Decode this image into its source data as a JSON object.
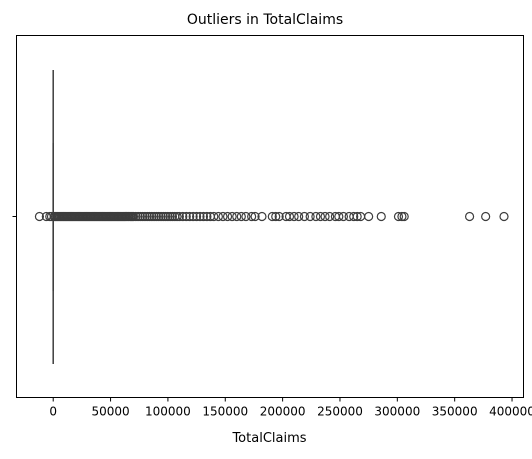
{
  "chart_data": {
    "type": "boxplot",
    "orientation": "horizontal",
    "title": "Outliers in TotalClaims",
    "xlabel": "TotalClaims",
    "ylabel": "",
    "xlim": [
      -32000,
      410000
    ],
    "xticks": [
      0,
      50000,
      100000,
      150000,
      200000,
      250000,
      300000,
      350000,
      400000
    ],
    "xtick_labels": [
      "0",
      "50000",
      "100000",
      "150000",
      "200000",
      "250000",
      "300000",
      "350000",
      "400000"
    ],
    "yticks": [
      ""
    ],
    "grid": false,
    "box": {
      "q1": 0,
      "median": 0,
      "q3": 0,
      "whisker_low": 0,
      "whisker_high": 0
    },
    "outliers": [
      -12000,
      -6000,
      -3000,
      -1500,
      1000,
      2000,
      3000,
      4000,
      5000,
      6000,
      7000,
      8000,
      9000,
      10000,
      11000,
      12000,
      13000,
      14000,
      15000,
      16000,
      17000,
      18000,
      19000,
      20000,
      21000,
      22000,
      23000,
      24000,
      25000,
      26000,
      27000,
      28000,
      29000,
      30000,
      31000,
      32000,
      33000,
      34000,
      35000,
      36000,
      37000,
      38000,
      39000,
      40000,
      41000,
      42000,
      43000,
      44000,
      45000,
      46000,
      47000,
      48000,
      49000,
      50000,
      51000,
      52000,
      53000,
      54000,
      55000,
      56000,
      57000,
      58000,
      59000,
      60000,
      61000,
      62000,
      63000,
      64000,
      65000,
      66000,
      67000,
      68000,
      69000,
      70000,
      72000,
      74000,
      76000,
      78000,
      80000,
      82000,
      84000,
      86000,
      88000,
      90000,
      92000,
      94000,
      96000,
      98000,
      100000,
      102000,
      104000,
      106000,
      108000,
      110000,
      113000,
      116000,
      119000,
      122000,
      125000,
      128000,
      131000,
      134000,
      137000,
      140000,
      144000,
      148000,
      152000,
      156000,
      160000,
      164000,
      168000,
      173000,
      176000,
      182000,
      191000,
      194000,
      197000,
      203000,
      206000,
      210000,
      214000,
      219000,
      224000,
      229000,
      233000,
      237000,
      241000,
      246000,
      249000,
      253000,
      258000,
      262000,
      265000,
      268000,
      275000,
      286000,
      301000,
      304000,
      306000,
      363000,
      377000,
      393000
    ],
    "style": {
      "outlier_stroke": "#3d3d3d",
      "box_color": "#3d3d3d",
      "axis_color": "#000000"
    }
  }
}
